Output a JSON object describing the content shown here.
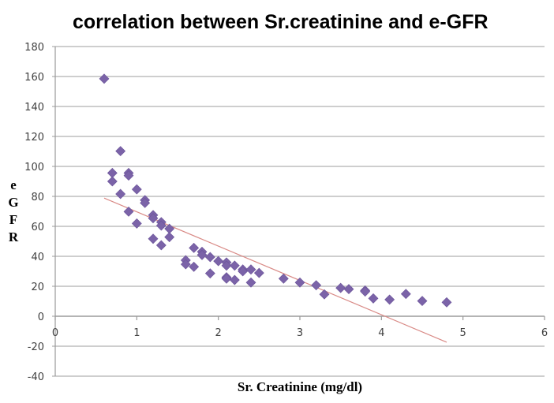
{
  "chart_data": {
    "type": "scatter",
    "title": "correlation between Sr.creatinine and e-GFR",
    "xlabel": "Sr. Creatinine (mg/dl)",
    "ylabel": "e-GFR",
    "ylabel_letters": [
      "e",
      "G",
      "F",
      "R"
    ],
    "xlim": [
      0,
      6
    ],
    "ylim": [
      -40,
      180
    ],
    "x_ticks": [
      0,
      1,
      2,
      3,
      4,
      5,
      6
    ],
    "y_ticks": [
      -40,
      -20,
      0,
      20,
      40,
      60,
      80,
      100,
      120,
      140,
      160,
      180
    ],
    "grid": "horizontal",
    "legend": "none",
    "marker": "diamond",
    "colors": {
      "points": "#7b63a8",
      "trendline": "#d98a86",
      "grid": "#bdbdbd"
    },
    "series": [
      {
        "name": "e-GFR",
        "points": [
          [
            0.6,
            158.5
          ],
          [
            0.8,
            110.2
          ],
          [
            0.7,
            95.6
          ],
          [
            0.9,
            95.6
          ],
          [
            0.9,
            93.9
          ],
          [
            0.7,
            90.0
          ],
          [
            1.0,
            84.7
          ],
          [
            0.8,
            81.6
          ],
          [
            1.1,
            77.5
          ],
          [
            1.1,
            75.6
          ],
          [
            0.9,
            69.8
          ],
          [
            1.2,
            67.5
          ],
          [
            1.2,
            65.4
          ],
          [
            1.3,
            62.8
          ],
          [
            1.0,
            61.9
          ],
          [
            1.3,
            60.5
          ],
          [
            1.4,
            58.4
          ],
          [
            1.4,
            52.8
          ],
          [
            1.2,
            51.7
          ],
          [
            1.3,
            47.4
          ],
          [
            1.7,
            45.6
          ],
          [
            1.8,
            43.0
          ],
          [
            1.8,
            40.9
          ],
          [
            1.9,
            39.5
          ],
          [
            1.6,
            37.4
          ],
          [
            2.0,
            36.8
          ],
          [
            2.1,
            35.9
          ],
          [
            1.6,
            34.7
          ],
          [
            2.1,
            33.8
          ],
          [
            2.2,
            33.8
          ],
          [
            1.7,
            33.0
          ],
          [
            2.3,
            31.2
          ],
          [
            2.4,
            31.2
          ],
          [
            2.3,
            30.0
          ],
          [
            2.5,
            28.9
          ],
          [
            1.9,
            28.6
          ],
          [
            2.1,
            26.0
          ],
          [
            2.1,
            25.1
          ],
          [
            2.8,
            25.1
          ],
          [
            2.2,
            24.2
          ],
          [
            2.4,
            22.5
          ],
          [
            3.0,
            22.5
          ],
          [
            3.2,
            20.7
          ],
          [
            3.5,
            18.9
          ],
          [
            3.6,
            18.1
          ],
          [
            3.8,
            17.2
          ],
          [
            3.8,
            16.5
          ],
          [
            4.3,
            14.9
          ],
          [
            3.3,
            14.6
          ],
          [
            3.9,
            11.9
          ],
          [
            4.1,
            11.1
          ],
          [
            4.5,
            10.2
          ],
          [
            4.8,
            9.3
          ]
        ]
      }
    ],
    "trendline": {
      "type": "linear",
      "x_range": [
        0.6,
        4.8
      ],
      "slope": -22.9,
      "intercept": 92.6
    }
  }
}
